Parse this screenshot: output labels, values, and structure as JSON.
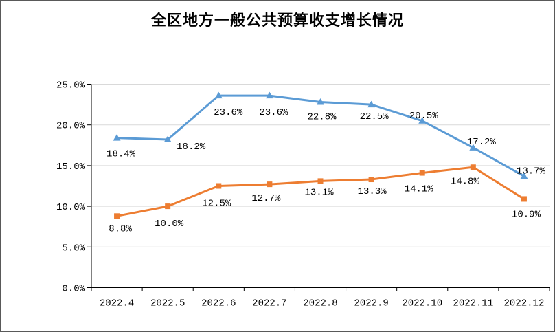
{
  "window": {
    "title": "全区地方一般公共预算收支增长情况"
  },
  "chart_data": {
    "type": "line",
    "title": "全区地方一般公共预算收支增长情况",
    "categories": [
      "2022.4",
      "2022.5",
      "2022.6",
      "2022.7",
      "2022.8",
      "2022.9",
      "2022.10",
      "2022.11",
      "2022.12"
    ],
    "series": [
      {
        "id": "series-blue",
        "color": "#5B9BD5",
        "marker": "triangle",
        "values": [
          18.4,
          18.2,
          23.6,
          23.6,
          22.8,
          22.5,
          20.5,
          17.2,
          13.7
        ],
        "labels": [
          "18.4%",
          "18.2%",
          "23.6%",
          "23.6%",
          "22.8%",
          "22.5%",
          "20.5%",
          "17.2%",
          "13.7%"
        ],
        "label_offsets": [
          [
            6,
            22
          ],
          [
            34,
            9
          ],
          [
            14,
            23
          ],
          [
            6,
            23
          ],
          [
            2,
            20
          ],
          [
            4,
            16
          ],
          [
            2,
            -9
          ],
          [
            12,
            -10
          ],
          [
            10,
            -9
          ]
        ]
      },
      {
        "id": "series-orange",
        "color": "#ED7D31",
        "marker": "square",
        "values": [
          8.8,
          10.0,
          12.5,
          12.7,
          13.1,
          13.3,
          14.1,
          14.8,
          10.9
        ],
        "labels": [
          "8.8%",
          "10.0%",
          "12.5%",
          "12.7%",
          "13.1%",
          "13.3%",
          "14.1%",
          "14.8%",
          "10.9%"
        ],
        "label_offsets": [
          [
            5,
            17
          ],
          [
            2,
            24
          ],
          [
            -3,
            24
          ],
          [
            -5,
            19
          ],
          [
            -2,
            15
          ],
          [
            1,
            16
          ],
          [
            -5,
            22
          ],
          [
            -12,
            19
          ],
          [
            3,
            21
          ]
        ]
      }
    ],
    "y_axis": {
      "min": 0,
      "max": 25,
      "step": 5,
      "tick_labels": [
        "0.0%",
        "5.0%",
        "10.0%",
        "15.0%",
        "20.0%",
        "25.0%"
      ]
    },
    "x_axis": {
      "tick_labels": [
        "2022.4",
        "2022.5",
        "2022.6",
        "2022.7",
        "2022.8",
        "2022.9",
        "2022.10",
        "2022.11",
        "2022.12"
      ]
    },
    "legend": "none",
    "grid": "horizontal",
    "colors": {
      "axis": "#000000",
      "gridline": "#D9D9D9",
      "label_text": "#000000"
    }
  }
}
